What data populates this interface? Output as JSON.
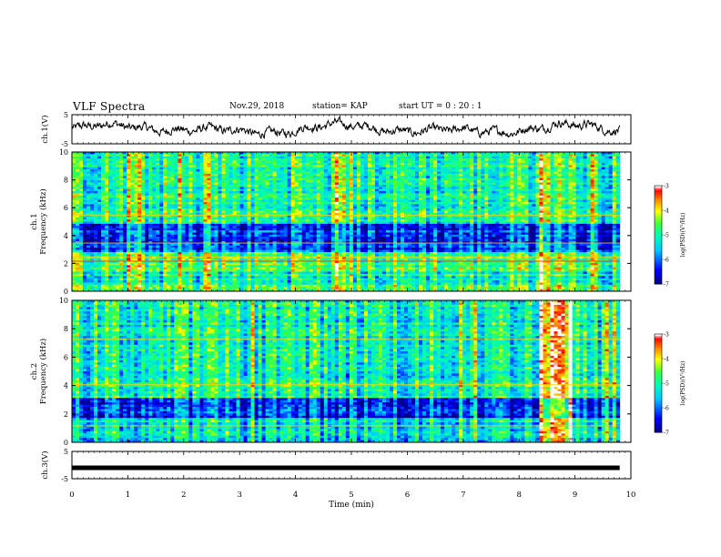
{
  "header": {
    "title": "VLF Spectra",
    "date": "Nov.29, 2018",
    "station": "station= KAP",
    "start": "start  UT =  0 : 20 : 1"
  },
  "chart_data": [
    {
      "type": "line",
      "id": "ch1-waveform",
      "ylabel": "ch.1(V)",
      "ylim": [
        -5,
        5
      ],
      "yticks": [
        "5",
        "-5"
      ],
      "x_range": [
        0,
        9.8
      ],
      "color": "#000000"
    },
    {
      "type": "heatmap",
      "id": "ch1-spectrogram",
      "ylabel": "ch.1 Frequency (kHz)",
      "ylim": [
        0,
        10
      ],
      "yticks": [
        "0",
        "2",
        "4",
        "6",
        "8",
        "10"
      ],
      "x_range": [
        0,
        9.8
      ],
      "colorbar": {
        "label": "log(PSD)(V²/Hz)",
        "range": [
          -7,
          -3
        ],
        "ticks": [
          "-3",
          "-4",
          "-5",
          "-6",
          "-7"
        ]
      }
    },
    {
      "type": "heatmap",
      "id": "ch2-spectrogram",
      "ylabel": "ch.2 Frequency (kHz)",
      "ylim": [
        0,
        10
      ],
      "yticks": [
        "0",
        "2",
        "4",
        "6",
        "8",
        "10"
      ],
      "x_range": [
        0,
        9.8
      ],
      "colorbar": {
        "label": "log(PSD)(V²/Hz)",
        "range": [
          -7,
          -3
        ],
        "ticks": [
          "-3",
          "-4",
          "-5",
          "-6",
          "-7"
        ]
      }
    },
    {
      "type": "line",
      "id": "ch3-waveform",
      "ylabel": "ch.3(V)",
      "ylim": [
        -5,
        5
      ],
      "yticks": [
        "5",
        "-5"
      ],
      "x_range": [
        0,
        9.8
      ],
      "constant_value": -1.0,
      "color": "#000000"
    }
  ],
  "x_axis": {
    "label": "Time  (min)",
    "range": [
      0,
      10
    ],
    "ticks": [
      "0",
      "1",
      "2",
      "3",
      "4",
      "5",
      "6",
      "7",
      "8",
      "9",
      "10"
    ]
  },
  "colors": {
    "colormap": [
      "#000080",
      "#0000ff",
      "#00c0ff",
      "#00ffc0",
      "#40ff40",
      "#ffff00",
      "#ff8000",
      "#ff0000",
      "#ffffff"
    ]
  }
}
